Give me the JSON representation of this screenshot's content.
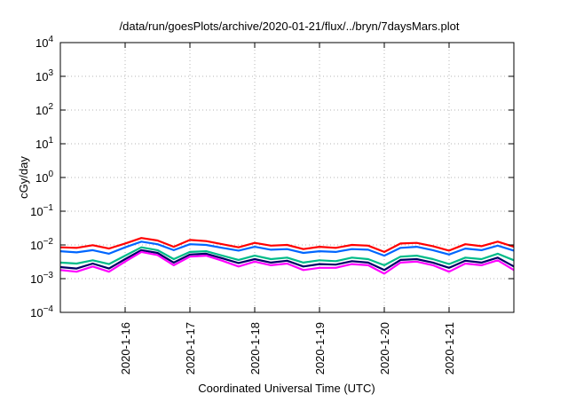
{
  "chart_data": {
    "type": "line",
    "title": "/data/run/goesPlots/archive/2020-01-21/flux/../bryn/7daysMars.plot",
    "xlabel": "Coordinated Universal Time (UTC)",
    "ylabel": "cGy/day",
    "yscale": "log",
    "ylim": [
      0.0001,
      10000
    ],
    "ytick_exponents": [
      4,
      3,
      2,
      1,
      0,
      -1,
      -2,
      -3,
      -4
    ],
    "xlim": [
      "2020-01-15T00:00",
      "2020-01-22T00:00"
    ],
    "xticks": [
      "2020-1-16",
      "2020-1-17",
      "2020-1-18",
      "2020-1-19",
      "2020-1-20",
      "2020-1-21"
    ],
    "grid": true,
    "x": [
      "2020-01-15T00:00",
      "2020-01-15T06:00",
      "2020-01-15T12:00",
      "2020-01-15T18:00",
      "2020-01-16T00:00",
      "2020-01-16T06:00",
      "2020-01-16T12:00",
      "2020-01-16T18:00",
      "2020-01-17T00:00",
      "2020-01-17T06:00",
      "2020-01-17T12:00",
      "2020-01-17T18:00",
      "2020-01-18T00:00",
      "2020-01-18T06:00",
      "2020-01-18T12:00",
      "2020-01-18T18:00",
      "2020-01-19T00:00",
      "2020-01-19T06:00",
      "2020-01-19T12:00",
      "2020-01-19T18:00",
      "2020-01-20T00:00",
      "2020-01-20T06:00",
      "2020-01-20T12:00",
      "2020-01-20T18:00",
      "2020-01-21T00:00",
      "2020-01-21T06:00",
      "2020-01-21T12:00",
      "2020-01-21T18:00",
      "2020-01-22T00:00"
    ],
    "series": [
      {
        "color": "#ff0000",
        "values": [
          0.0085,
          0.0082,
          0.0098,
          0.0078,
          0.011,
          0.016,
          0.0135,
          0.0088,
          0.014,
          0.013,
          0.0105,
          0.0085,
          0.0115,
          0.0095,
          0.01,
          0.0075,
          0.0088,
          0.0082,
          0.01,
          0.0095,
          0.0062,
          0.011,
          0.0115,
          0.0092,
          0.0068,
          0.0105,
          0.0092,
          0.0125,
          0.0088
        ]
      },
      {
        "color": "#0066ff",
        "values": [
          0.0065,
          0.006,
          0.007,
          0.0055,
          0.0085,
          0.0125,
          0.0105,
          0.007,
          0.0105,
          0.01,
          0.0082,
          0.0068,
          0.0088,
          0.0072,
          0.0075,
          0.0058,
          0.0065,
          0.0062,
          0.0075,
          0.0072,
          0.0048,
          0.0082,
          0.0088,
          0.007,
          0.0052,
          0.0078,
          0.007,
          0.0095,
          0.0068
        ]
      },
      {
        "color": "#00bb88",
        "values": [
          0.003,
          0.0028,
          0.0035,
          0.0027,
          0.0048,
          0.0085,
          0.007,
          0.0038,
          0.0062,
          0.0065,
          0.0048,
          0.0036,
          0.0048,
          0.0038,
          0.0042,
          0.003,
          0.0035,
          0.0033,
          0.0042,
          0.0038,
          0.0025,
          0.0045,
          0.0048,
          0.0038,
          0.0027,
          0.0042,
          0.0038,
          0.0055,
          0.0035
        ]
      },
      {
        "color": "#000066",
        "values": [
          0.0022,
          0.002,
          0.0028,
          0.002,
          0.0038,
          0.007,
          0.0058,
          0.003,
          0.0052,
          0.0055,
          0.004,
          0.0029,
          0.0038,
          0.003,
          0.0034,
          0.0023,
          0.0027,
          0.0026,
          0.0033,
          0.003,
          0.0018,
          0.0036,
          0.0038,
          0.003,
          0.0021,
          0.0034,
          0.003,
          0.0042,
          0.0023
        ]
      },
      {
        "color": "#ff00ff",
        "values": [
          0.0018,
          0.0016,
          0.0023,
          0.0016,
          0.0032,
          0.0062,
          0.005,
          0.0025,
          0.0045,
          0.0048,
          0.0034,
          0.0023,
          0.0032,
          0.0025,
          0.0028,
          0.0018,
          0.0021,
          0.0021,
          0.0027,
          0.0025,
          0.0014,
          0.003,
          0.0032,
          0.0025,
          0.0016,
          0.0028,
          0.0025,
          0.0035,
          0.0018
        ]
      }
    ]
  }
}
